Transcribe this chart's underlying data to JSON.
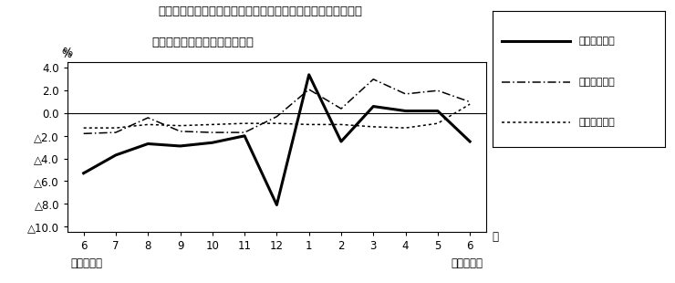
{
  "title_line1": "第４図　賃金、労働時間、常用雇用指数　対前年同月比の推移",
  "title_line2": "（規横５人以上　調査産業計）",
  "ylabel": "%",
  "xlabel_right": "月",
  "x_labels": [
    "6",
    "7",
    "8",
    "9",
    "10",
    "11",
    "12",
    "1",
    "2",
    "3",
    "4",
    "5",
    "6"
  ],
  "x_bottom_left": "平成２１年",
  "x_bottom_right": "平成２２年",
  "ylim": [
    -10.5,
    4.5
  ],
  "yticks": [
    4.0,
    2.0,
    0.0,
    -2.0,
    -4.0,
    -6.0,
    -8.0,
    -10.0
  ],
  "series1_label": "現金給与総額",
  "series1_values": [
    -5.3,
    -3.7,
    -2.7,
    -2.9,
    -2.6,
    -2.0,
    -8.1,
    3.4,
    -2.5,
    0.6,
    0.2,
    0.2,
    -2.5
  ],
  "series2_label": "総実労働時間",
  "series2_values": [
    -1.8,
    -1.7,
    -0.4,
    -1.6,
    -1.7,
    -1.7,
    -0.3,
    2.1,
    0.4,
    3.0,
    1.7,
    2.0,
    1.0
  ],
  "series3_label": "常用雇用指数",
  "series3_values": [
    -1.3,
    -1.3,
    -1.0,
    -1.1,
    -1.0,
    -0.9,
    -0.9,
    -1.0,
    -1.0,
    -1.2,
    -1.3,
    -0.9,
    0.8
  ],
  "bg_color": "#ffffff"
}
